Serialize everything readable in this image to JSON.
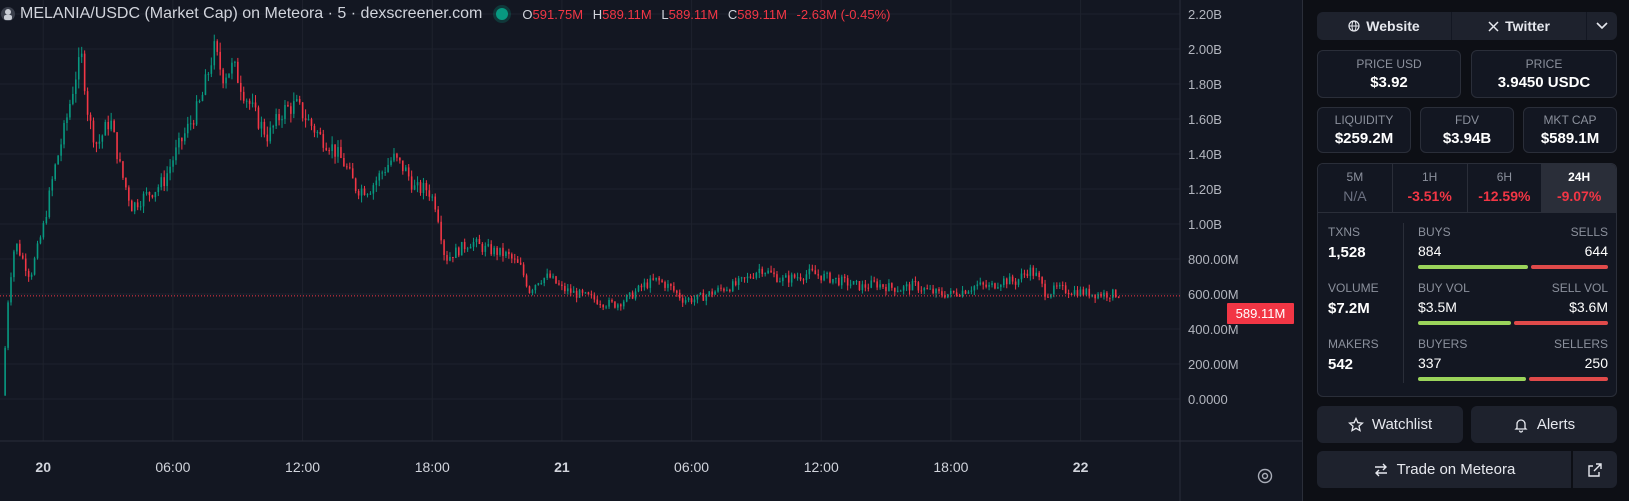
{
  "legend": {
    "title": "MELANIA/USDC (Market Cap) on Meteora · 5 · dexscreener.com",
    "o_key": "O",
    "o_val": "591.75M",
    "h_key": "H",
    "h_val": "589.11M",
    "l_key": "L",
    "l_val": "589.11M",
    "c_key": "C",
    "c_val": "589.11M",
    "change": "-2.63M (-0.45%)"
  },
  "price_tag": "589.11M",
  "chart_data": {
    "type": "candlestick",
    "y_ticks": [
      "2.20B",
      "2.00B",
      "1.80B",
      "1.60B",
      "1.40B",
      "1.20B",
      "1.00B",
      "800.00M",
      "600.00M",
      "400.00M",
      "200.00M",
      "0.0000"
    ],
    "ylim": [
      -0.16,
      2.2
    ],
    "x_ticks": [
      "20",
      "06:00",
      "12:00",
      "18:00",
      "21",
      "06:00",
      "12:00",
      "18:00",
      "22"
    ],
    "x_bold": [
      true,
      false,
      false,
      false,
      true,
      false,
      false,
      false,
      true
    ],
    "x_tick_hours": [
      0,
      6,
      12,
      18,
      24,
      30,
      36,
      42,
      48
    ],
    "x_range_hours": [
      -2.0,
      52.6
    ],
    "last_price": 0.589,
    "close_path": [
      [
        -1.9,
        0.02
      ],
      [
        -1.6,
        0.62
      ],
      [
        -1.3,
        0.9
      ],
      [
        -0.6,
        0.7
      ],
      [
        0.0,
        0.98
      ],
      [
        0.5,
        1.3
      ],
      [
        1.0,
        1.55
      ],
      [
        1.5,
        1.85
      ],
      [
        1.8,
        1.95
      ],
      [
        2.1,
        1.6
      ],
      [
        2.5,
        1.45
      ],
      [
        3.1,
        1.6
      ],
      [
        3.6,
        1.3
      ],
      [
        4.1,
        1.1
      ],
      [
        4.6,
        1.15
      ],
      [
        5.2,
        1.2
      ],
      [
        5.6,
        1.25
      ],
      [
        6.1,
        1.4
      ],
      [
        6.7,
        1.55
      ],
      [
        7.3,
        1.7
      ],
      [
        7.9,
        2.0
      ],
      [
        8.3,
        1.85
      ],
      [
        8.8,
        1.9
      ],
      [
        9.3,
        1.75
      ],
      [
        9.9,
        1.6
      ],
      [
        10.4,
        1.5
      ],
      [
        11.1,
        1.65
      ],
      [
        11.7,
        1.68
      ],
      [
        12.2,
        1.6
      ],
      [
        12.8,
        1.5
      ],
      [
        13.3,
        1.45
      ],
      [
        13.9,
        1.35
      ],
      [
        14.5,
        1.2
      ],
      [
        15.1,
        1.2
      ],
      [
        15.7,
        1.3
      ],
      [
        16.2,
        1.38
      ],
      [
        16.8,
        1.3
      ],
      [
        17.2,
        1.2
      ],
      [
        17.8,
        1.2
      ],
      [
        18.2,
        1.1
      ],
      [
        18.6,
        0.8
      ],
      [
        19.2,
        0.85
      ],
      [
        19.8,
        0.9
      ],
      [
        20.4,
        0.86
      ],
      [
        21.0,
        0.84
      ],
      [
        21.5,
        0.82
      ],
      [
        22.1,
        0.75
      ],
      [
        22.5,
        0.62
      ],
      [
        22.9,
        0.68
      ],
      [
        23.4,
        0.7
      ],
      [
        24.0,
        0.63
      ],
      [
        24.7,
        0.6
      ],
      [
        25.3,
        0.58
      ],
      [
        25.9,
        0.55
      ],
      [
        26.5,
        0.54
      ],
      [
        27.1,
        0.58
      ],
      [
        27.8,
        0.65
      ],
      [
        28.4,
        0.68
      ],
      [
        29.0,
        0.64
      ],
      [
        29.6,
        0.57
      ],
      [
        30.2,
        0.57
      ],
      [
        30.8,
        0.6
      ],
      [
        31.4,
        0.63
      ],
      [
        32.0,
        0.65
      ],
      [
        32.6,
        0.69
      ],
      [
        33.2,
        0.75
      ],
      [
        33.6,
        0.72
      ],
      [
        34.2,
        0.68
      ],
      [
        34.9,
        0.7
      ],
      [
        35.5,
        0.72
      ],
      [
        36.1,
        0.7
      ],
      [
        36.7,
        0.68
      ],
      [
        37.3,
        0.66
      ],
      [
        37.9,
        0.64
      ],
      [
        38.5,
        0.66
      ],
      [
        39.1,
        0.64
      ],
      [
        39.7,
        0.63
      ],
      [
        40.3,
        0.65
      ],
      [
        40.9,
        0.62
      ],
      [
        41.5,
        0.6
      ],
      [
        42.0,
        0.6
      ],
      [
        42.6,
        0.62
      ],
      [
        43.2,
        0.65
      ],
      [
        43.8,
        0.64
      ],
      [
        44.4,
        0.68
      ],
      [
        45.0,
        0.67
      ],
      [
        45.6,
        0.74
      ],
      [
        46.0,
        0.7
      ],
      [
        46.4,
        0.6
      ],
      [
        46.9,
        0.63
      ],
      [
        47.5,
        0.62
      ],
      [
        48.1,
        0.61
      ],
      [
        48.7,
        0.6
      ],
      [
        49.3,
        0.6
      ],
      [
        49.9,
        0.6
      ]
    ]
  },
  "panel": {
    "links": {
      "website": "Website",
      "twitter": "Twitter"
    },
    "price_usd": {
      "label": "PRICE USD",
      "value": "$3.92"
    },
    "price": {
      "label": "PRICE",
      "value": "3.9450 USDC"
    },
    "liquidity": {
      "label": "LIQUIDITY",
      "value": "$259.2M"
    },
    "fdv": {
      "label": "FDV",
      "value": "$3.94B"
    },
    "mkt_cap": {
      "label": "MKT CAP",
      "value": "$589.1M"
    },
    "timeframes": [
      {
        "label": "5M",
        "value": "N/A"
      },
      {
        "label": "1H",
        "value": "-3.51%"
      },
      {
        "label": "6H",
        "value": "-12.59%"
      },
      {
        "label": "24H",
        "value": "-9.07%"
      }
    ],
    "txns": {
      "label": "TXNS",
      "value": "1,528",
      "buys_label": "BUYS",
      "sells_label": "SELLS",
      "buys": "884",
      "sells": "644",
      "buy_fraction": 0.58
    },
    "volume": {
      "label": "VOLUME",
      "value": "$7.2M",
      "buys_label": "BUY VOL",
      "sells_label": "SELL VOL",
      "buys": "$3.5M",
      "sells": "$3.6M",
      "buy_fraction": 0.49
    },
    "makers": {
      "label": "MAKERS",
      "value": "542",
      "buys_label": "BUYERS",
      "sells_label": "SELLERS",
      "buys": "337",
      "sells": "250",
      "buy_fraction": 0.57
    },
    "watchlist": "Watchlist",
    "alerts": "Alerts",
    "trade": "Trade on Meteora"
  },
  "colors": {
    "up": "#089981",
    "down": "#f23645",
    "buy_bar": "#9bd45b",
    "sell_bar": "#e04a4a"
  }
}
